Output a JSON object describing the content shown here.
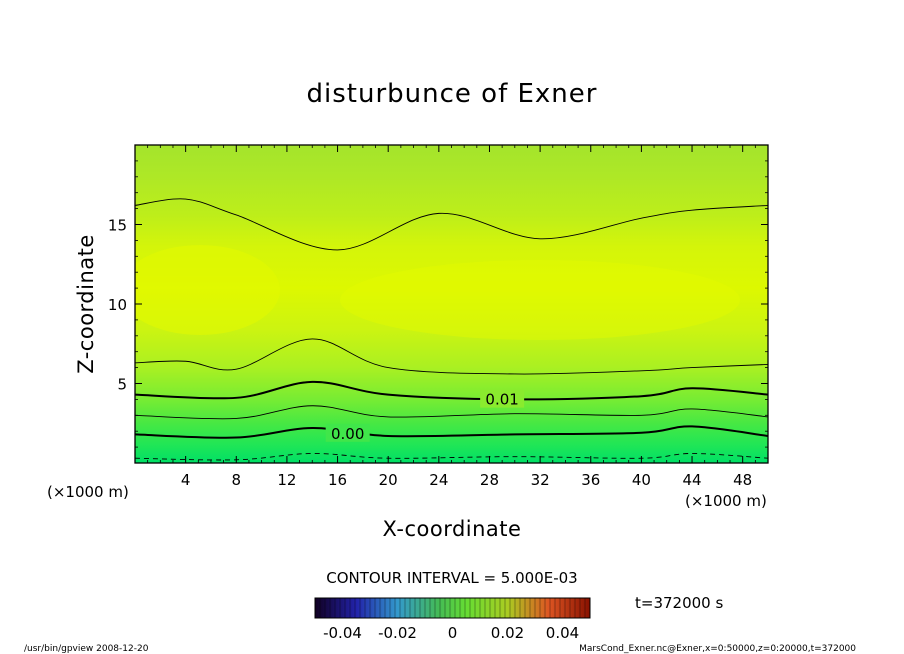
{
  "chart_data": {
    "type": "contour",
    "title": "disturbunce of Exner",
    "xlabel": "X-coordinate",
    "ylabel": "Z-coordinate",
    "x_unit": "(×1000 m)",
    "y_unit": "(×1000 m)",
    "xlim": [
      0,
      50
    ],
    "ylim": [
      0,
      20
    ],
    "x_ticks": [
      4,
      8,
      12,
      16,
      20,
      24,
      28,
      32,
      36,
      40,
      44,
      48
    ],
    "y_ticks": [
      5,
      10,
      15
    ],
    "contour_interval_label": "CONTOUR INTERVAL = 5.000E-03",
    "contour_lines": [
      {
        "level_label": "",
        "style": "dashed",
        "x": [
          0,
          8,
          14,
          20,
          30,
          40,
          44,
          50
        ],
        "z": [
          0.3,
          0.2,
          0.6,
          0.3,
          0.4,
          0.3,
          0.6,
          0.3
        ]
      },
      {
        "level_label": "0.00",
        "style": "thick",
        "x": [
          0,
          8,
          14,
          20,
          30,
          40,
          44,
          50
        ],
        "z": [
          1.8,
          1.6,
          2.2,
          1.7,
          1.8,
          1.9,
          2.3,
          1.7
        ]
      },
      {
        "level_label": "",
        "style": "thin",
        "x": [
          0,
          8,
          14,
          20,
          30,
          40,
          44,
          50
        ],
        "z": [
          3.0,
          2.8,
          3.6,
          2.9,
          3.1,
          3.0,
          3.4,
          2.9
        ]
      },
      {
        "level_label": "0.01",
        "style": "thick",
        "x": [
          0,
          8,
          14,
          20,
          30,
          40,
          44,
          50
        ],
        "z": [
          4.3,
          4.1,
          5.1,
          4.3,
          4.0,
          4.2,
          4.7,
          4.3
        ]
      },
      {
        "level_label": "",
        "style": "thin",
        "x": [
          0,
          4,
          8,
          14,
          20,
          30,
          40,
          44,
          50
        ],
        "z": [
          6.3,
          6.4,
          5.9,
          7.8,
          6.0,
          5.6,
          5.8,
          6.0,
          6.2
        ]
      },
      {
        "level_label": "",
        "style": "thin",
        "x": [
          0,
          4,
          8,
          16,
          24,
          32,
          40,
          44,
          50
        ],
        "z": [
          16.2,
          16.6,
          15.6,
          13.4,
          15.7,
          14.1,
          15.4,
          15.9,
          16.2
        ]
      }
    ],
    "colorbar": {
      "ticks": [
        "-0.04",
        "-0.02",
        "0",
        "0.02",
        "0.04"
      ],
      "range": [
        -0.05,
        0.05
      ]
    },
    "time_label": "t=372000 s",
    "footer_left": "/usr/bin/gpview  2008-12-20",
    "footer_right": "MarsCond_Exner.nc@Exner,x=0:50000,z=0:20000,t=372000",
    "colors": {
      "low": "#00dd55",
      "mid": "#66e833",
      "high": "#ddff00",
      "top": "#aaee22"
    }
  }
}
